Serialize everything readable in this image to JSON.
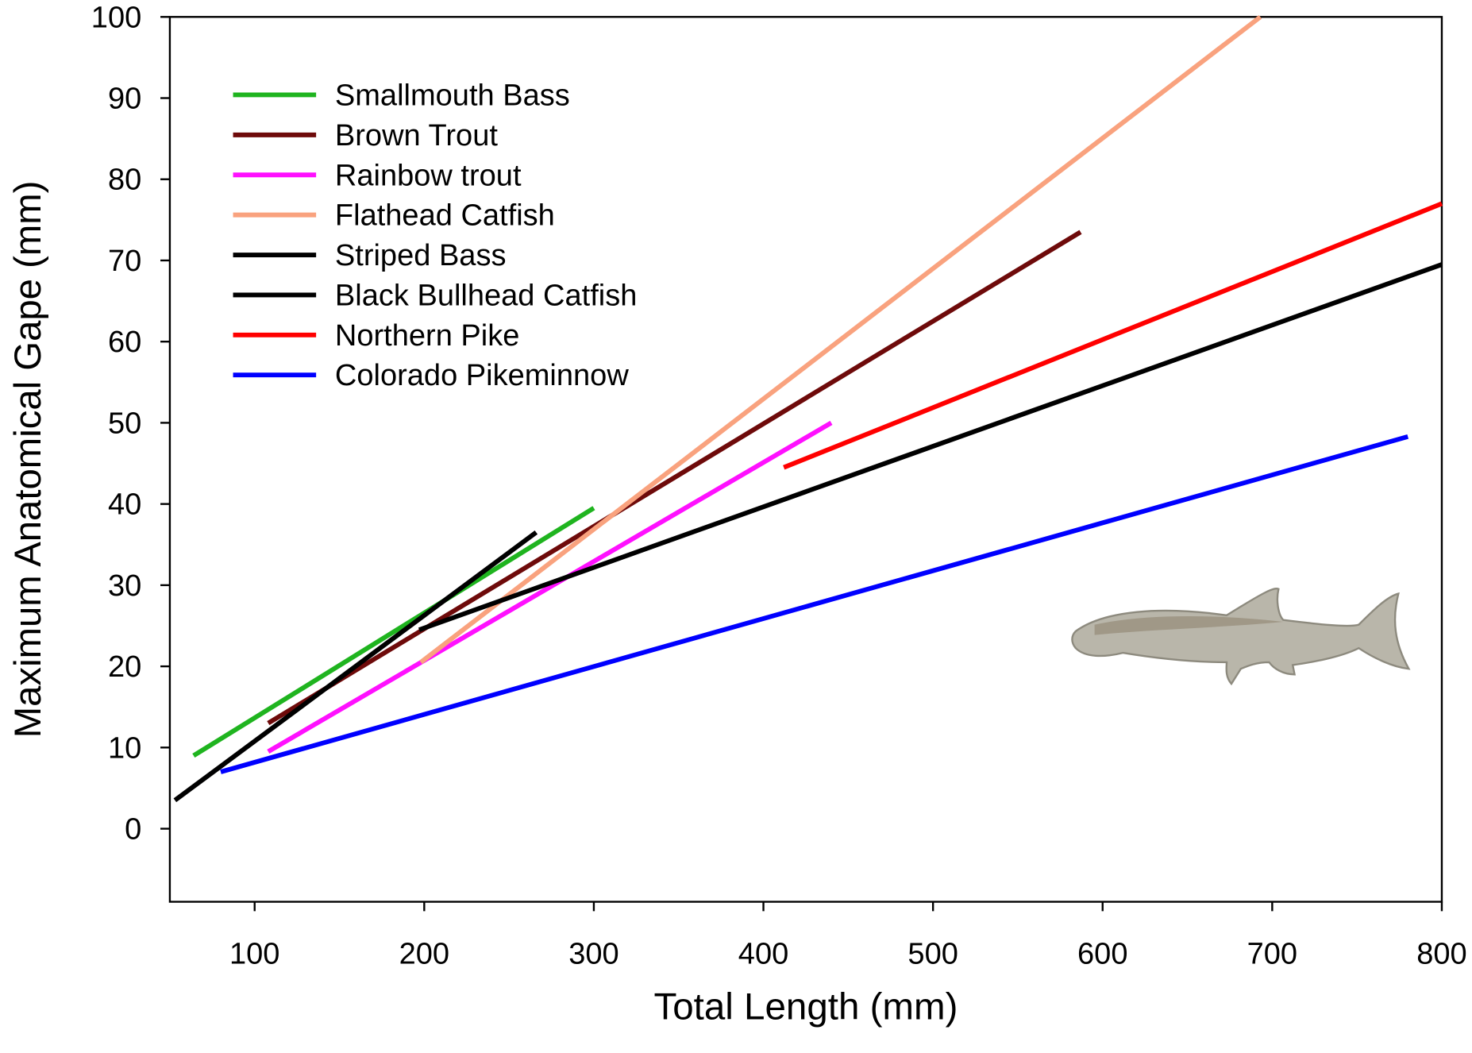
{
  "chart_data": {
    "type": "line",
    "x_label": "Total Length (mm)",
    "y_label": "Maximum Anatomical Gape (mm)",
    "xlim": [
      50,
      800
    ],
    "ylim": [
      -9,
      100
    ],
    "xticks": [
      100,
      200,
      300,
      400,
      500,
      600,
      700,
      800
    ],
    "yticks": [
      0,
      10,
      20,
      30,
      40,
      50,
      60,
      70,
      80,
      90,
      100
    ],
    "legend_position": "upper left",
    "series": [
      {
        "name": "Smallmouth Bass",
        "color": "#1fb41f",
        "x": [
          64,
          300
        ],
        "values": [
          9,
          39.5
        ]
      },
      {
        "name": "Brown Trout",
        "color": "#6e0a0a",
        "x": [
          108,
          587
        ],
        "values": [
          13,
          73.5
        ]
      },
      {
        "name": "Rainbow trout",
        "color": "#ff10ff",
        "x": [
          108,
          440
        ],
        "values": [
          9.5,
          50
        ]
      },
      {
        "name": "Flathead Catfish",
        "color": "#f9a27e",
        "x": [
          198,
          693
        ],
        "values": [
          20.5,
          100
        ]
      },
      {
        "name": "Striped Bass",
        "color": "#000000",
        "x": [
          53,
          266
        ],
        "values": [
          3.5,
          36.5
        ]
      },
      {
        "name": "Black Bullhead Catfish",
        "color": "#000000",
        "x": [
          197,
          800
        ],
        "values": [
          24.5,
          69.5
        ]
      },
      {
        "name": "Northern Pike",
        "color": "#ff0000",
        "x": [
          412,
          800
        ],
        "values": [
          44.5,
          77
        ]
      },
      {
        "name": "Colorado Pikeminnow",
        "color": "#0000ff",
        "x": [
          80,
          780
        ],
        "values": [
          7,
          48.3
        ]
      }
    ]
  }
}
